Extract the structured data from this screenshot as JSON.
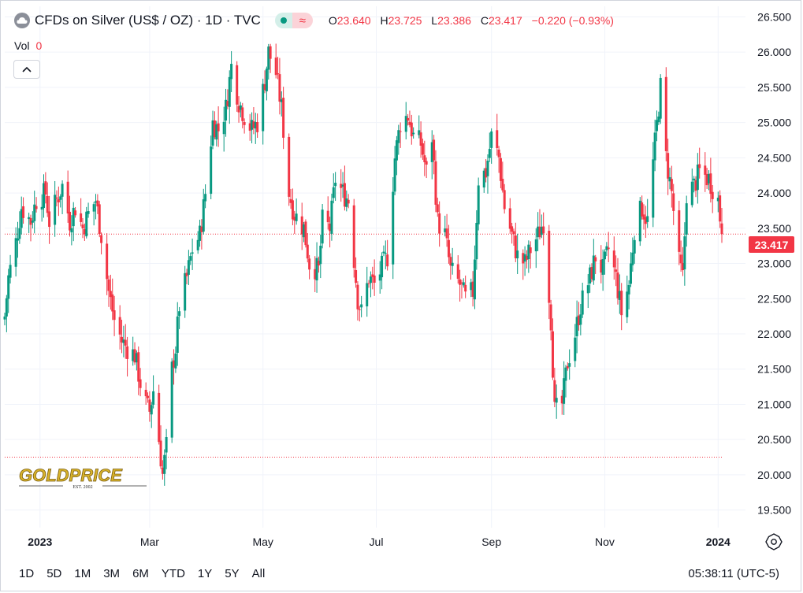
{
  "header": {
    "title": "CFDs on Silver (US$ / OZ) · 1D · TVC",
    "ohlc": [
      {
        "k": "O",
        "v": "23.640"
      },
      {
        "k": "H",
        "v": "23.725"
      },
      {
        "k": "L",
        "v": "23.386"
      },
      {
        "k": "C",
        "v": "23.417"
      }
    ],
    "change": "−0.220 (−0.93%)",
    "vol_label": "Vol",
    "vol_value": "0"
  },
  "price_label": "23.417",
  "logo": {
    "name": "GOLDPRICE",
    "est": "EST. 2002"
  },
  "time_ranges": [
    "1D",
    "5D",
    "1M",
    "3M",
    "6M",
    "YTD",
    "1Y",
    "5Y",
    "All"
  ],
  "clock": "05:38:11 (UTC-5)",
  "colors": {
    "up": "#089981",
    "down": "#f23645",
    "grid": "#f0f3fa",
    "text": "#131722"
  },
  "chart_data": {
    "type": "candlestick",
    "y_ticks": [
      "19.500",
      "20.000",
      "20.500",
      "21.000",
      "21.500",
      "22.000",
      "22.500",
      "23.000",
      "23.500",
      "24.000",
      "24.500",
      "25.000",
      "25.500",
      "26.000",
      "26.500"
    ],
    "y_range": [
      19.25,
      26.65
    ],
    "x_ticks": [
      {
        "label": "2023",
        "date": "2023-01-01",
        "bold": true
      },
      {
        "label": "Mar",
        "date": "2023-03-01",
        "bold": false
      },
      {
        "label": "May",
        "date": "2023-05-01",
        "bold": false
      },
      {
        "label": "Jul",
        "date": "2023-07-01",
        "bold": false
      },
      {
        "label": "Sep",
        "date": "2023-09-01",
        "bold": false
      },
      {
        "label": "Nov",
        "date": "2023-11-01",
        "bold": false
      },
      {
        "label": "2024",
        "date": "2024-01-01",
        "bold": true
      }
    ],
    "date_range": [
      "2022-12-13",
      "2024-01-03"
    ],
    "current_price": 23.417,
    "reference_line": 20.25,
    "closes": [
      [
        "2022-12-13",
        22.25
      ],
      [
        "2022-12-15",
        22.8
      ],
      [
        "2022-12-19",
        23.3
      ],
      [
        "2022-12-22",
        23.8
      ],
      [
        "2022-12-27",
        23.6
      ],
      [
        "2022-12-30",
        23.9
      ],
      [
        "2023-01-04",
        24.0
      ],
      [
        "2023-01-06",
        23.6
      ],
      [
        "2023-01-10",
        23.9
      ],
      [
        "2023-01-13",
        24.1
      ],
      [
        "2023-01-17",
        23.6
      ],
      [
        "2023-01-20",
        23.8
      ],
      [
        "2023-01-24",
        23.5
      ],
      [
        "2023-01-27",
        23.7
      ],
      [
        "2023-01-31",
        23.9
      ],
      [
        "2023-02-03",
        23.4
      ],
      [
        "2023-02-07",
        22.6
      ],
      [
        "2023-02-10",
        22.2
      ],
      [
        "2023-02-14",
        21.9
      ],
      [
        "2023-02-17",
        21.8
      ],
      [
        "2023-02-21",
        21.7
      ],
      [
        "2023-02-24",
        21.3
      ],
      [
        "2023-02-27",
        21.0
      ],
      [
        "2023-03-01",
        20.9
      ],
      [
        "2023-03-03",
        21.2
      ],
      [
        "2023-03-06",
        20.5
      ],
      [
        "2023-03-08",
        20.0
      ],
      [
        "2023-03-10",
        20.4
      ],
      [
        "2023-03-13",
        21.5
      ],
      [
        "2023-03-15",
        21.8
      ],
      [
        "2023-03-17",
        22.4
      ],
      [
        "2023-03-21",
        22.8
      ],
      [
        "2023-03-24",
        23.2
      ],
      [
        "2023-03-28",
        23.4
      ],
      [
        "2023-03-31",
        24.0
      ],
      [
        "2023-04-04",
        25.0
      ],
      [
        "2023-04-07",
        24.9
      ],
      [
        "2023-04-11",
        25.2
      ],
      [
        "2023-04-14",
        25.8
      ],
      [
        "2023-04-18",
        25.3
      ],
      [
        "2023-04-21",
        25.1
      ],
      [
        "2023-04-25",
        24.9
      ],
      [
        "2023-04-28",
        25.0
      ],
      [
        "2023-05-02",
        25.6
      ],
      [
        "2023-05-04",
        26.0
      ],
      [
        "2023-05-08",
        25.7
      ],
      [
        "2023-05-11",
        25.2
      ],
      [
        "2023-05-15",
        24.0
      ],
      [
        "2023-05-18",
        23.7
      ],
      [
        "2023-05-23",
        23.5
      ],
      [
        "2023-05-26",
        23.0
      ],
      [
        "2023-05-31",
        22.9
      ],
      [
        "2023-06-02",
        23.6
      ],
      [
        "2023-06-06",
        23.5
      ],
      [
        "2023-06-09",
        24.2
      ],
      [
        "2023-06-13",
        24.0
      ],
      [
        "2023-06-16",
        23.9
      ],
      [
        "2023-06-21",
        22.5
      ],
      [
        "2023-06-23",
        22.3
      ],
      [
        "2023-06-27",
        22.8
      ],
      [
        "2023-06-30",
        22.7
      ],
      [
        "2023-07-05",
        23.0
      ],
      [
        "2023-07-07",
        23.1
      ],
      [
        "2023-07-11",
        24.5
      ],
      [
        "2023-07-14",
        25.0
      ],
      [
        "2023-07-18",
        25.1
      ],
      [
        "2023-07-21",
        24.8
      ],
      [
        "2023-07-25",
        24.7
      ],
      [
        "2023-07-28",
        24.3
      ],
      [
        "2023-07-31",
        24.8
      ],
      [
        "2023-08-03",
        23.6
      ],
      [
        "2023-08-07",
        23.4
      ],
      [
        "2023-08-10",
        22.9
      ],
      [
        "2023-08-15",
        22.7
      ],
      [
        "2023-08-18",
        22.5
      ],
      [
        "2023-08-22",
        22.6
      ],
      [
        "2023-08-25",
        24.2
      ],
      [
        "2023-08-29",
        24.3
      ],
      [
        "2023-09-01",
        24.8
      ],
      [
        "2023-09-05",
        24.5
      ],
      [
        "2023-09-08",
        23.8
      ],
      [
        "2023-09-12",
        23.4
      ],
      [
        "2023-09-15",
        23.1
      ],
      [
        "2023-09-19",
        23.0
      ],
      [
        "2023-09-22",
        23.2
      ],
      [
        "2023-09-26",
        23.4
      ],
      [
        "2023-09-29",
        23.6
      ],
      [
        "2023-10-03",
        22.2
      ],
      [
        "2023-10-05",
        20.9
      ],
      [
        "2023-10-09",
        21.0
      ],
      [
        "2023-10-12",
        21.6
      ],
      [
        "2023-10-16",
        22.0
      ],
      [
        "2023-10-19",
        22.4
      ],
      [
        "2023-10-24",
        22.8
      ],
      [
        "2023-10-27",
        23.1
      ],
      [
        "2023-10-31",
        22.9
      ],
      [
        "2023-11-03",
        23.2
      ],
      [
        "2023-11-07",
        22.8
      ],
      [
        "2023-11-10",
        22.3
      ],
      [
        "2023-11-14",
        22.7
      ],
      [
        "2023-11-17",
        23.5
      ],
      [
        "2023-11-21",
        23.8
      ],
      [
        "2023-11-24",
        23.6
      ],
      [
        "2023-11-28",
        24.7
      ],
      [
        "2023-12-01",
        25.5
      ],
      [
        "2023-12-04",
        24.5
      ],
      [
        "2023-12-07",
        24.0
      ],
      [
        "2023-12-11",
        23.0
      ],
      [
        "2023-12-13",
        22.8
      ],
      [
        "2023-12-15",
        24.0
      ],
      [
        "2023-12-19",
        24.1
      ],
      [
        "2023-12-22",
        24.3
      ],
      [
        "2023-12-27",
        24.2
      ],
      [
        "2024-01-01",
        23.9
      ],
      [
        "2024-01-03",
        23.417
      ]
    ]
  }
}
